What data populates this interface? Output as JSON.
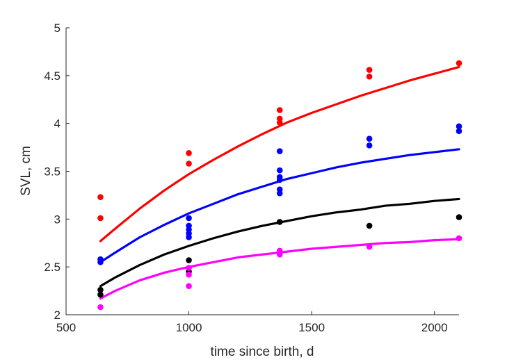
{
  "chart_data": {
    "type": "scatter",
    "title": "",
    "xlabel": "time since birth, d",
    "ylabel": "SVL, cm",
    "xlim": [
      500,
      2100
    ],
    "ylim": [
      2,
      5
    ],
    "xticks": [
      500,
      1000,
      1500,
      2000
    ],
    "yticks": [
      2,
      2.5,
      3,
      3.5,
      4,
      4.5,
      5
    ],
    "xtick_labels": [
      "500",
      "1000",
      "1500",
      "2000"
    ],
    "ytick_labels": [
      "2",
      "2.5",
      "3",
      "3.5",
      "4",
      "4.5",
      "5"
    ],
    "grid": false,
    "legend": "none",
    "series": [
      {
        "color": "#ff0000",
        "points": [
          [
            640,
            3.23
          ],
          [
            640,
            3.01
          ],
          [
            1000,
            3.69
          ],
          [
            1000,
            3.58
          ],
          [
            1370,
            4.14
          ],
          [
            1370,
            4.05
          ],
          [
            1370,
            4.01
          ],
          [
            1735,
            4.56
          ],
          [
            1735,
            4.49
          ],
          [
            2100,
            4.63
          ]
        ],
        "curve": [
          [
            640,
            2.77
          ],
          [
            700,
            2.9
          ],
          [
            800,
            3.11
          ],
          [
            900,
            3.3
          ],
          [
            1000,
            3.47
          ],
          [
            1100,
            3.62
          ],
          [
            1200,
            3.76
          ],
          [
            1300,
            3.89
          ],
          [
            1400,
            4.01
          ],
          [
            1500,
            4.11
          ],
          [
            1600,
            4.2
          ],
          [
            1700,
            4.29
          ],
          [
            1800,
            4.37
          ],
          [
            1900,
            4.45
          ],
          [
            2000,
            4.52
          ],
          [
            2100,
            4.59
          ]
        ]
      },
      {
        "color": "#0000ff",
        "points": [
          [
            640,
            2.58
          ],
          [
            640,
            2.55
          ],
          [
            1000,
            3.01
          ],
          [
            1000,
            2.93
          ],
          [
            1000,
            2.89
          ],
          [
            1000,
            2.85
          ],
          [
            1000,
            2.81
          ],
          [
            1370,
            3.71
          ],
          [
            1370,
            3.51
          ],
          [
            1370,
            3.44
          ],
          [
            1370,
            3.41
          ],
          [
            1370,
            3.31
          ],
          [
            1370,
            3.27
          ],
          [
            1735,
            3.84
          ],
          [
            1735,
            3.77
          ],
          [
            2100,
            3.97
          ],
          [
            2100,
            3.92
          ]
        ],
        "curve": [
          [
            640,
            2.55
          ],
          [
            700,
            2.65
          ],
          [
            800,
            2.81
          ],
          [
            900,
            2.94
          ],
          [
            1000,
            3.06
          ],
          [
            1100,
            3.16
          ],
          [
            1200,
            3.26
          ],
          [
            1300,
            3.34
          ],
          [
            1400,
            3.42
          ],
          [
            1500,
            3.48
          ],
          [
            1600,
            3.54
          ],
          [
            1700,
            3.59
          ],
          [
            1800,
            3.63
          ],
          [
            1900,
            3.67
          ],
          [
            2000,
            3.7
          ],
          [
            2100,
            3.73
          ]
        ]
      },
      {
        "color": "#000000",
        "points": [
          [
            640,
            2.26
          ],
          [
            640,
            2.21
          ],
          [
            1000,
            2.57
          ],
          [
            1000,
            2.45
          ],
          [
            1370,
            2.97
          ],
          [
            1735,
            2.93
          ],
          [
            2100,
            3.02
          ]
        ],
        "curve": [
          [
            640,
            2.3
          ],
          [
            700,
            2.39
          ],
          [
            800,
            2.52
          ],
          [
            900,
            2.63
          ],
          [
            1000,
            2.72
          ],
          [
            1100,
            2.8
          ],
          [
            1200,
            2.87
          ],
          [
            1300,
            2.93
          ],
          [
            1400,
            2.98
          ],
          [
            1500,
            3.03
          ],
          [
            1600,
            3.07
          ],
          [
            1700,
            3.1
          ],
          [
            1800,
            3.14
          ],
          [
            1900,
            3.16
          ],
          [
            2000,
            3.19
          ],
          [
            2100,
            3.21
          ]
        ]
      },
      {
        "color": "#ff00ff",
        "points": [
          [
            640,
            2.08
          ],
          [
            1000,
            2.49
          ],
          [
            1000,
            2.42
          ],
          [
            1000,
            2.3
          ],
          [
            1370,
            2.67
          ],
          [
            1370,
            2.63
          ],
          [
            1735,
            2.71
          ],
          [
            2100,
            2.8
          ]
        ],
        "curve": [
          [
            640,
            2.17
          ],
          [
            700,
            2.25
          ],
          [
            800,
            2.36
          ],
          [
            900,
            2.44
          ],
          [
            1000,
            2.5
          ],
          [
            1100,
            2.55
          ],
          [
            1200,
            2.6
          ],
          [
            1300,
            2.63
          ],
          [
            1400,
            2.66
          ],
          [
            1500,
            2.69
          ],
          [
            1600,
            2.71
          ],
          [
            1700,
            2.73
          ],
          [
            1800,
            2.75
          ],
          [
            1900,
            2.76
          ],
          [
            2000,
            2.78
          ],
          [
            2100,
            2.79
          ]
        ]
      }
    ]
  }
}
